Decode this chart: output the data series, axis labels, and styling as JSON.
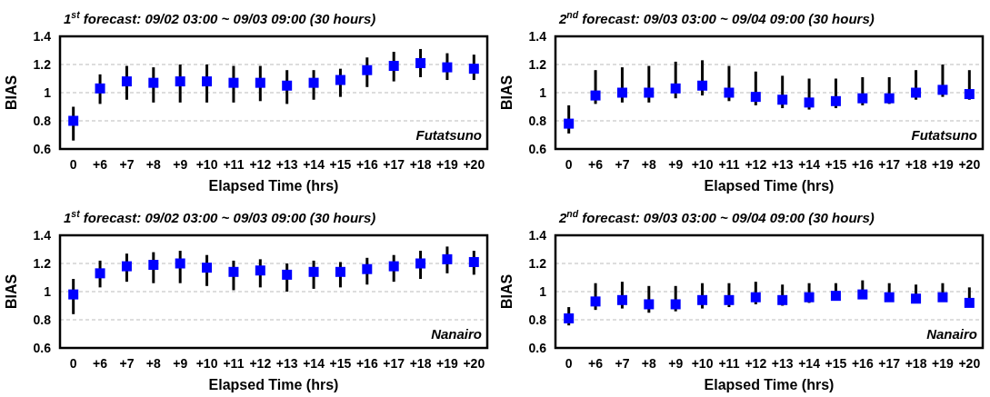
{
  "chart_data": [
    {
      "type": "scatter",
      "title": "1$^{st}$ forecast: 09/02 03:00 ~ 09/03 09:00 (30 hours)",
      "xlabel": "Elapsed Time (hrs)",
      "ylabel": "BIAS",
      "annotations": [
        "Futatsuno"
      ],
      "categories": [
        "0",
        "+6",
        "+7",
        "+8",
        "+9",
        "+10",
        "+11",
        "+12",
        "+13",
        "+14",
        "+15",
        "+16",
        "+17",
        "+18",
        "+19",
        "+20"
      ],
      "ylim": [
        0.6,
        1.4
      ],
      "yticks": [
        0.6,
        0.8,
        1,
        1.2,
        1.4
      ],
      "grid": "y",
      "marker": "square",
      "series": [
        {
          "color": "#0000ff",
          "values": [
            0.8,
            1.03,
            1.08,
            1.07,
            1.08,
            1.08,
            1.07,
            1.07,
            1.05,
            1.07,
            1.09,
            1.16,
            1.19,
            1.21,
            1.18,
            1.17
          ],
          "errors": [
            [
              0.66,
              0.9
            ],
            [
              0.92,
              1.13
            ],
            [
              0.95,
              1.19
            ],
            [
              0.93,
              1.18
            ],
            [
              0.93,
              1.2
            ],
            [
              0.93,
              1.2
            ],
            [
              0.93,
              1.19
            ],
            [
              0.94,
              1.19
            ],
            [
              0.92,
              1.16
            ],
            [
              0.95,
              1.16
            ],
            [
              0.97,
              1.17
            ],
            [
              1.04,
              1.25
            ],
            [
              1.08,
              1.29
            ],
            [
              1.11,
              1.31
            ],
            [
              1.09,
              1.28
            ],
            [
              1.09,
              1.27
            ]
          ]
        }
      ]
    },
    {
      "type": "scatter",
      "title": "2$^{nd}$ forecast: 09/03 03:00 ~ 09/04 09:00 (30 hours)",
      "xlabel": "Elapsed Time (hrs)",
      "ylabel": "BIAS",
      "annotations": [
        "Futatsuno"
      ],
      "categories": [
        "0",
        "+6",
        "+7",
        "+8",
        "+9",
        "+10",
        "+11",
        "+12",
        "+13",
        "+14",
        "+15",
        "+16",
        "+17",
        "+18",
        "+19",
        "+20"
      ],
      "ylim": [
        0.6,
        1.4
      ],
      "yticks": [
        0.6,
        0.8,
        1,
        1.2,
        1.4
      ],
      "grid": "y",
      "marker": "square",
      "series": [
        {
          "color": "#0000ff",
          "values": [
            0.78,
            0.98,
            1.0,
            1.0,
            1.03,
            1.05,
            1.0,
            0.97,
            0.95,
            0.93,
            0.94,
            0.96,
            0.96,
            1.0,
            1.02,
            0.99
          ],
          "errors": [
            [
              0.71,
              0.91
            ],
            [
              0.92,
              1.16
            ],
            [
              0.93,
              1.18
            ],
            [
              0.93,
              1.19
            ],
            [
              0.96,
              1.22
            ],
            [
              0.98,
              1.23
            ],
            [
              0.94,
              1.19
            ],
            [
              0.91,
              1.15
            ],
            [
              0.89,
              1.12
            ],
            [
              0.88,
              1.1
            ],
            [
              0.89,
              1.1
            ],
            [
              0.91,
              1.11
            ],
            [
              0.92,
              1.11
            ],
            [
              0.95,
              1.16
            ],
            [
              0.97,
              1.2
            ],
            [
              0.95,
              1.16
            ]
          ]
        }
      ]
    },
    {
      "type": "scatter",
      "title": "1$^{st}$ forecast: 09/02 03:00 ~ 09/03 09:00 (30 hours)",
      "xlabel": "Elapsed Time (hrs)",
      "ylabel": "BIAS",
      "annotations": [
        "Nanairo"
      ],
      "categories": [
        "0",
        "+6",
        "+7",
        "+8",
        "+9",
        "+10",
        "+11",
        "+12",
        "+13",
        "+14",
        "+15",
        "+16",
        "+17",
        "+18",
        "+19",
        "+20"
      ],
      "ylim": [
        0.6,
        1.4
      ],
      "yticks": [
        0.6,
        0.8,
        1,
        1.2,
        1.4
      ],
      "grid": "y",
      "marker": "square",
      "series": [
        {
          "color": "#0000ff",
          "values": [
            0.98,
            1.13,
            1.18,
            1.19,
            1.2,
            1.17,
            1.14,
            1.15,
            1.12,
            1.14,
            1.14,
            1.16,
            1.18,
            1.2,
            1.23,
            1.21
          ],
          "errors": [
            [
              0.84,
              1.09
            ],
            [
              1.03,
              1.22
            ],
            [
              1.07,
              1.27
            ],
            [
              1.06,
              1.28
            ],
            [
              1.06,
              1.29
            ],
            [
              1.04,
              1.26
            ],
            [
              1.01,
              1.22
            ],
            [
              1.03,
              1.23
            ],
            [
              1.0,
              1.2
            ],
            [
              1.02,
              1.22
            ],
            [
              1.03,
              1.21
            ],
            [
              1.05,
              1.24
            ],
            [
              1.07,
              1.26
            ],
            [
              1.09,
              1.29
            ],
            [
              1.13,
              1.32
            ],
            [
              1.12,
              1.29
            ]
          ]
        }
      ]
    },
    {
      "type": "scatter",
      "title": "2$^{nd}$ forecast: 09/03 03:00 ~ 09/04 09:00 (30 hours)",
      "xlabel": "Elapsed Time (hrs)",
      "ylabel": "BIAS",
      "annotations": [
        "Nanairo"
      ],
      "categories": [
        "0",
        "+6",
        "+7",
        "+8",
        "+9",
        "+10",
        "+11",
        "+12",
        "+13",
        "+14",
        "+15",
        "+16",
        "+17",
        "+18",
        "+19",
        "+20"
      ],
      "ylim": [
        0.6,
        1.4
      ],
      "yticks": [
        0.6,
        0.8,
        1,
        1.2,
        1.4
      ],
      "grid": "y",
      "marker": "square",
      "series": [
        {
          "color": "#0000ff",
          "values": [
            0.81,
            0.93,
            0.94,
            0.91,
            0.91,
            0.94,
            0.94,
            0.96,
            0.94,
            0.96,
            0.97,
            0.98,
            0.96,
            0.95,
            0.96,
            0.92
          ],
          "errors": [
            [
              0.76,
              0.89
            ],
            [
              0.87,
              1.06
            ],
            [
              0.88,
              1.07
            ],
            [
              0.85,
              1.04
            ],
            [
              0.86,
              1.04
            ],
            [
              0.88,
              1.06
            ],
            [
              0.89,
              1.06
            ],
            [
              0.91,
              1.07
            ],
            [
              0.9,
              1.05
            ],
            [
              0.92,
              1.06
            ],
            [
              0.94,
              1.06
            ],
            [
              0.95,
              1.08
            ],
            [
              0.96,
              1.06
            ],
            [
              0.95,
              1.05
            ],
            [
              0.93,
              1.06
            ],
            [
              0.92,
              1.03
            ]
          ]
        }
      ]
    }
  ]
}
